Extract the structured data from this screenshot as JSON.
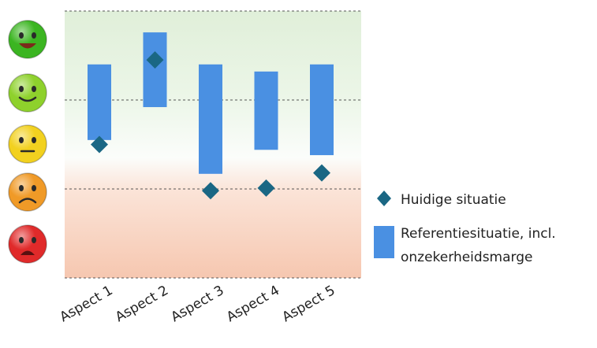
{
  "chart_data": {
    "type": "bar",
    "categories": [
      "Aspect 1",
      "Aspect 2",
      "Aspect 3",
      "Aspect 4",
      "Aspect 5"
    ],
    "ylim": [
      0,
      3
    ],
    "range_series": {
      "name": "Referentiesituatie, incl. onzekerheidsmarge",
      "low": [
        1.55,
        1.92,
        1.17,
        1.44,
        1.38
      ],
      "high": [
        2.4,
        2.76,
        2.4,
        2.32,
        2.4
      ]
    },
    "point_series": {
      "name": "Huidige situatie",
      "values": [
        1.5,
        2.45,
        0.98,
        1.01,
        1.18
      ]
    },
    "y_levels": [
      {
        "mood": "very-happy",
        "color": "#3bb521"
      },
      {
        "mood": "happy",
        "color": "#8ed12c"
      },
      {
        "mood": "neutral",
        "color": "#f2d11f"
      },
      {
        "mood": "unhappy",
        "color": "#f09a27"
      },
      {
        "mood": "very-unhappy",
        "color": "#e02a2a"
      }
    ],
    "grid": true,
    "legend_position": "right",
    "colors": {
      "bar": "#4a90e2",
      "marker": "#1a6784"
    }
  },
  "legend": {
    "items": [
      {
        "label": "Huidige situatie",
        "icon": "diamond-icon"
      },
      {
        "label": "Referentiesituatie, incl.",
        "label2": "onzekerheidsmarge",
        "icon": "bar-icon"
      }
    ]
  }
}
